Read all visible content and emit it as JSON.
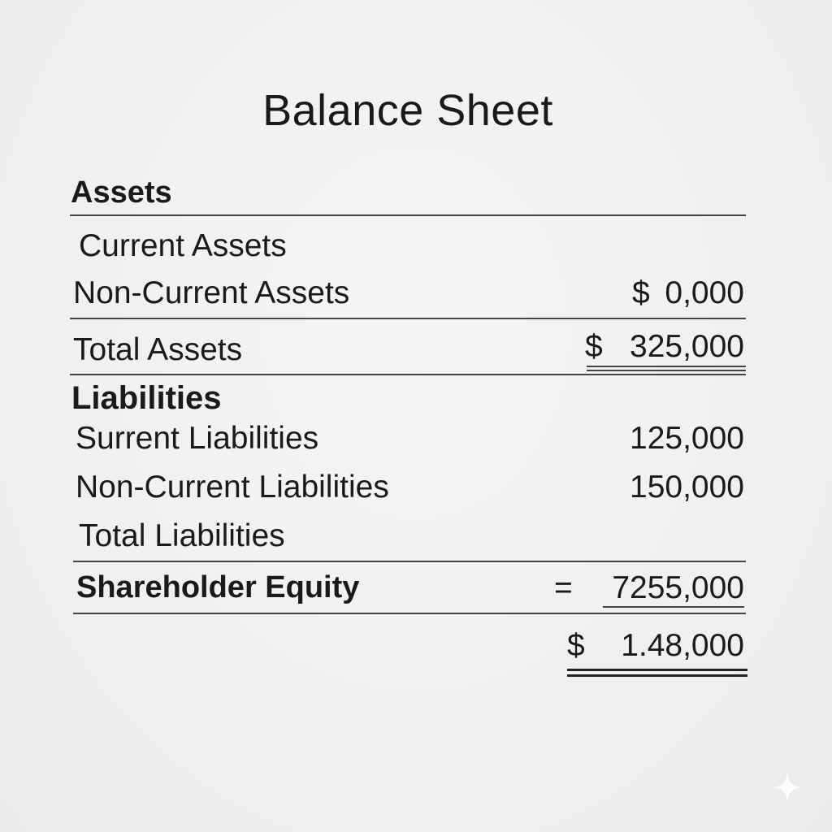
{
  "document": {
    "title": "Balance Sheet",
    "assets": {
      "heading": "Assets",
      "current_label": "Current Assets",
      "noncurrent_label": "Non-Current Assets",
      "noncurrent_currency": "$",
      "noncurrent_value": "0,000",
      "total_label": "Total Assets",
      "total_currency": "$",
      "total_value": "325,000"
    },
    "liabilities": {
      "heading": "Liabilities",
      "current_label": "Surrent Liabilities",
      "current_value": "125,000",
      "noncurrent_label": "Non-Current Liabilities",
      "noncurrent_value": "150,000",
      "total_label": "Total Liabilities"
    },
    "equity": {
      "label": "Shareholder Equity",
      "operator": "=",
      "value": "7255,000"
    },
    "grand_total": {
      "currency": "$",
      "value": "1.48,000"
    }
  },
  "colors": {
    "background": "#f1f1ef",
    "text": "#1a1a1a",
    "rule": "#444444"
  }
}
